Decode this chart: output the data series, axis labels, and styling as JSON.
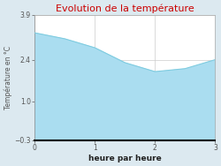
{
  "x": [
    0,
    0.5,
    1,
    1.5,
    2,
    2.5,
    3
  ],
  "y": [
    3.3,
    3.1,
    2.8,
    2.3,
    2.0,
    2.1,
    2.4
  ],
  "title": "Evolution de la température",
  "xlabel": "heure par heure",
  "ylabel": "Température en °C",
  "ylim": [
    -0.3,
    3.9
  ],
  "xlim": [
    0,
    3
  ],
  "xticks": [
    0,
    1,
    2,
    3
  ],
  "yticks": [
    -0.3,
    1.0,
    2.4,
    3.9
  ],
  "line_color": "#7fcce0",
  "fill_color": "#aaddf0",
  "title_color": "#cc0000",
  "bg_color": "#dce9f0",
  "plot_bg_color": "#ffffff",
  "grid_color": "#cccccc",
  "axis_label_color": "#555555",
  "title_fontsize": 8,
  "tick_fontsize": 5.5,
  "xlabel_fontsize": 6.5,
  "ylabel_fontsize": 5.5
}
